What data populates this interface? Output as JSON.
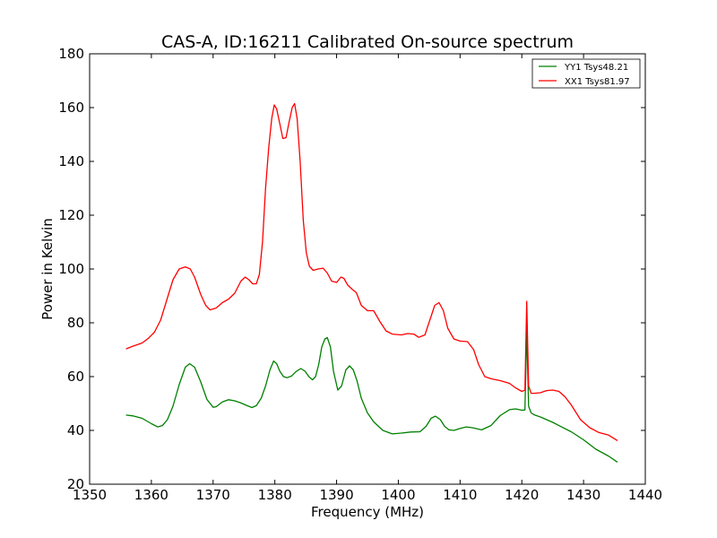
{
  "chart_data": {
    "type": "line",
    "title": "CAS-A, ID:16211 Calibrated On-source spectrum",
    "xlabel": "Frequency (MHz)",
    "ylabel": "Power in Kelvin",
    "xlim": [
      1350,
      1440
    ],
    "ylim": [
      20,
      180
    ],
    "xticks": [
      "1350",
      "1360",
      "1370",
      "1380",
      "1390",
      "1400",
      "1410",
      "1420",
      "1430",
      "1440"
    ],
    "yticks": [
      "20",
      "40",
      "60",
      "80",
      "100",
      "120",
      "140",
      "160",
      "180"
    ],
    "grid": false,
    "legend_position": "top-right",
    "series": [
      {
        "name": "YY1 Tsys48.21",
        "color": "#008000",
        "x": [
          1355.9,
          1357,
          1358.5,
          1360,
          1361,
          1361.8,
          1362.6,
          1363.5,
          1364.5,
          1365.5,
          1366.2,
          1367,
          1368,
          1369,
          1370,
          1370.5,
          1371.5,
          1372.5,
          1373.5,
          1374.5,
          1375.5,
          1376.3,
          1377,
          1377.8,
          1378.5,
          1379.2,
          1379.8,
          1380.3,
          1380.8,
          1381.4,
          1382,
          1382.7,
          1383.4,
          1384.2,
          1384.9,
          1385.5,
          1386.1,
          1386.6,
          1387.1,
          1387.6,
          1388.1,
          1388.5,
          1389,
          1389.5,
          1390.2,
          1390.8,
          1391.5,
          1392.1,
          1392.7,
          1393.3,
          1394,
          1395,
          1396,
          1397.5,
          1399,
          1400.5,
          1402,
          1403.5,
          1404.5,
          1405.3,
          1406,
          1406.8,
          1407.5,
          1408.2,
          1409,
          1410,
          1411,
          1412,
          1413.5,
          1415,
          1416.5,
          1418,
          1419,
          1420,
          1420.5,
          1420.8,
          1421.1,
          1421.5,
          1422,
          1423,
          1424,
          1425,
          1426,
          1428,
          1430,
          1432,
          1434,
          1435.5
        ],
        "y": [
          45.7,
          45.4,
          44.5,
          42.5,
          41.3,
          41.8,
          44,
          49,
          57,
          63.5,
          64.8,
          63.5,
          58,
          51.5,
          48.6,
          48.8,
          50.6,
          51.4,
          51,
          50.2,
          49.2,
          48.5,
          49.2,
          52,
          56.5,
          62.5,
          65.8,
          64.8,
          62,
          60,
          59.6,
          60.2,
          61.8,
          63,
          62,
          60,
          58.8,
          60,
          64.5,
          71,
          74,
          74.5,
          71,
          62,
          55,
          56.5,
          62.5,
          64,
          62.5,
          58.5,
          52,
          46.5,
          43.2,
          40,
          38.7,
          39,
          39.4,
          39.5,
          41.5,
          44.5,
          45.3,
          44,
          41.5,
          40.2,
          40,
          40.7,
          41.3,
          41,
          40.2,
          41.8,
          45.5,
          47.7,
          48,
          47.5,
          47.6,
          77.5,
          49,
          46.5,
          45.8,
          45,
          44,
          43,
          41.8,
          39.5,
          36.5,
          33,
          30.5,
          28.2
        ]
      },
      {
        "name": "XX1 Tsys81.97",
        "color": "#ff0000",
        "x": [
          1355.9,
          1357,
          1358.5,
          1359.5,
          1360.5,
          1361.5,
          1362.5,
          1363.5,
          1364.5,
          1365.5,
          1366.3,
          1367,
          1368,
          1368.8,
          1369.5,
          1370.5,
          1371.5,
          1372.5,
          1373.5,
          1374.5,
          1375.2,
          1375.8,
          1376.4,
          1377,
          1377.5,
          1378,
          1378.5,
          1379,
          1379.5,
          1379.9,
          1380.3,
          1380.8,
          1381.3,
          1381.8,
          1382.3,
          1382.8,
          1383.2,
          1383.6,
          1384.1,
          1384.6,
          1385.1,
          1385.6,
          1386.2,
          1387,
          1387.8,
          1388.5,
          1389.2,
          1390,
          1390.7,
          1391.2,
          1391.8,
          1392.5,
          1393.2,
          1394,
          1395,
          1396,
          1397,
          1398,
          1399,
          1400.5,
          1401.5,
          1402.5,
          1403.3,
          1404.3,
          1405.1,
          1405.9,
          1406.6,
          1407.3,
          1408,
          1409,
          1410,
          1411.2,
          1412.2,
          1413,
          1414,
          1415,
          1416.5,
          1418,
          1419,
          1420,
          1420.5,
          1420.8,
          1421.1,
          1421.5,
          1422,
          1423,
          1424,
          1425,
          1426,
          1427,
          1428,
          1429.5,
          1431,
          1432.5,
          1434,
          1435.5
        ],
        "y": [
          70.3,
          71.3,
          72.5,
          74.2,
          76.5,
          81,
          88.5,
          96,
          100,
          100.8,
          100,
          97,
          90.5,
          86.5,
          84.8,
          85.5,
          87.5,
          88.8,
          91,
          95.5,
          97,
          96,
          94.5,
          94.5,
          98,
          110,
          130,
          145,
          156,
          161,
          159.5,
          154,
          148.5,
          148.8,
          154.5,
          160,
          161.5,
          156,
          140,
          118,
          106,
          101,
          99.5,
          100,
          100.3,
          98.5,
          95.5,
          95,
          97,
          96.5,
          94,
          92.5,
          91.2,
          86.5,
          84.5,
          84.5,
          80.5,
          77,
          75.8,
          75.5,
          76,
          75.8,
          74.6,
          75.5,
          81,
          86.5,
          87.5,
          84.5,
          78,
          74,
          73.2,
          73,
          70,
          64.5,
          60,
          59.2,
          58.5,
          57.5,
          55.8,
          54.5,
          55,
          88,
          56.5,
          53.8,
          53.8,
          54,
          54.8,
          55,
          54.5,
          52.5,
          49.5,
          44,
          41,
          39.2,
          38.3,
          36.2
        ]
      }
    ]
  }
}
